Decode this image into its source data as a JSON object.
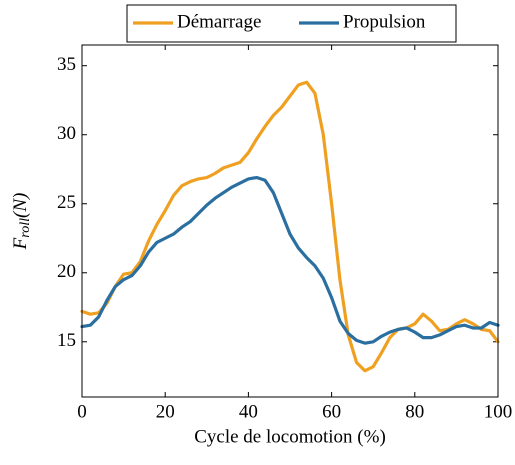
{
  "chart_data": {
    "type": "line",
    "x_label": "Cycle de locomotion (%)",
    "y_label": {
      "main": "F",
      "sub": "roll",
      "rest": "(N)"
    },
    "x": [
      0,
      2,
      4,
      6,
      8,
      10,
      12,
      14,
      16,
      18,
      20,
      22,
      24,
      26,
      28,
      30,
      32,
      34,
      36,
      38,
      40,
      42,
      44,
      46,
      48,
      50,
      52,
      54,
      56,
      58,
      60,
      62,
      64,
      66,
      68,
      70,
      72,
      74,
      76,
      78,
      80,
      82,
      84,
      86,
      88,
      90,
      92,
      94,
      96,
      98,
      100
    ],
    "series": [
      {
        "name": "Démarrage",
        "color": "#f0a020",
        "values": [
          17.2,
          17.0,
          17.1,
          17.8,
          19.0,
          19.9,
          20.0,
          20.8,
          22.3,
          23.5,
          24.5,
          25.6,
          26.3,
          26.6,
          26.8,
          26.9,
          27.2,
          27.6,
          27.8,
          28.0,
          28.7,
          29.7,
          30.6,
          31.4,
          32.0,
          32.8,
          33.6,
          33.8,
          33.0,
          30.0,
          25.0,
          19.5,
          15.5,
          13.5,
          12.9,
          13.2,
          14.2,
          15.3,
          15.9,
          16.0,
          16.3,
          17.0,
          16.5,
          15.8,
          15.9,
          16.3,
          16.6,
          16.3,
          15.9,
          15.8,
          15.0
        ]
      },
      {
        "name": "Propulsion",
        "color": "#2a6fa0",
        "values": [
          16.1,
          16.2,
          16.8,
          18.0,
          19.0,
          19.5,
          19.8,
          20.5,
          21.5,
          22.2,
          22.5,
          22.8,
          23.3,
          23.7,
          24.3,
          24.9,
          25.4,
          25.8,
          26.2,
          26.5,
          26.8,
          26.9,
          26.7,
          25.8,
          24.3,
          22.8,
          21.8,
          21.1,
          20.5,
          19.6,
          18.2,
          16.5,
          15.6,
          15.1,
          14.9,
          15.0,
          15.4,
          15.7,
          15.9,
          16.0,
          15.7,
          15.3,
          15.3,
          15.5,
          15.8,
          16.1,
          16.2,
          16.0,
          16.0,
          16.4,
          16.2
        ]
      }
    ],
    "xlim": [
      0,
      100
    ],
    "xticks": [
      0,
      20,
      40,
      60,
      80,
      100
    ],
    "ylim": [
      11,
      36.5
    ],
    "yticks": [
      15,
      20,
      25,
      30,
      35
    ],
    "grid": false,
    "legend": "top"
  }
}
